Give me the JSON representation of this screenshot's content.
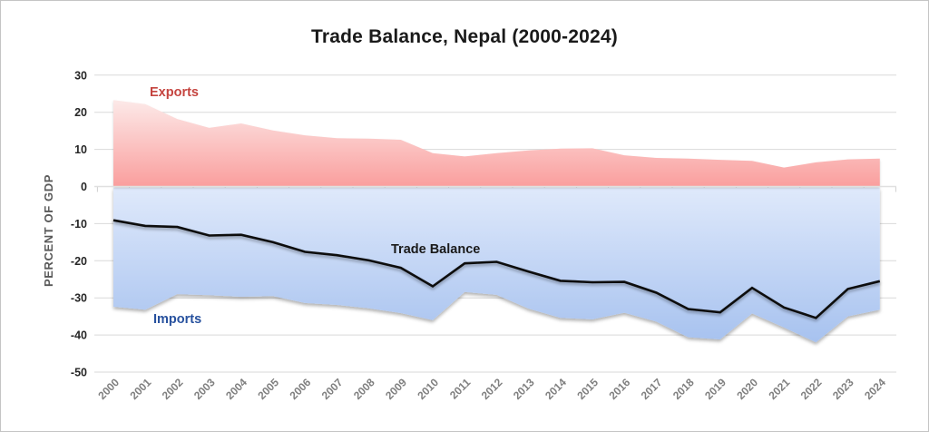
{
  "chart_data": {
    "type": "area",
    "title": "Trade Balance, Nepal (2000-2024)",
    "ylabel": "PERCENT OF GDP",
    "xlabel": "",
    "ylim": [
      -50,
      30
    ],
    "y_ticks": [
      30,
      20,
      10,
      0,
      -10,
      -20,
      -30,
      -40,
      -50
    ],
    "grid": true,
    "legend_position": "inline-labels",
    "categories": [
      2000,
      2001,
      2002,
      2003,
      2004,
      2005,
      2006,
      2007,
      2008,
      2009,
      2010,
      2011,
      2012,
      2013,
      2014,
      2015,
      2016,
      2017,
      2018,
      2019,
      2020,
      2021,
      2022,
      2023,
      2024
    ],
    "series": [
      {
        "name": "Exports",
        "render": "area",
        "values": [
          23.3,
          22.2,
          18.2,
          15.8,
          17.0,
          15.1,
          13.8,
          13.0,
          12.9,
          12.6,
          9.0,
          8.1,
          9.0,
          9.7,
          10.2,
          10.3,
          8.4,
          7.7,
          7.5,
          7.2,
          6.9,
          5.1,
          6.5,
          7.3,
          7.5
        ],
        "fill_top": "#fce9e8",
        "fill_bottom": "#fa9e9d",
        "label_color": "#c5443f"
      },
      {
        "name": "Imports",
        "render": "area",
        "values": [
          -32.4,
          -33.2,
          -29.0,
          -29.3,
          -29.7,
          -29.5,
          -31.4,
          -31.9,
          -32.8,
          -34.1,
          -36.0,
          -28.4,
          -29.2,
          -32.9,
          -35.4,
          -35.8,
          -34.0,
          -36.4,
          -40.6,
          -41.2,
          -34.2,
          -38.0,
          -42.0,
          -35.0,
          -33.2
        ],
        "fill_top": "#dfe9fb",
        "fill_bottom": "#a7c2ef",
        "label_color": "#27519e"
      },
      {
        "name": "Trade Balance",
        "render": "line",
        "values": [
          -9.1,
          -10.6,
          -10.9,
          -13.2,
          -13.0,
          -15.0,
          -17.6,
          -18.5,
          -19.9,
          -21.9,
          -26.9,
          -20.7,
          -20.3,
          -22.9,
          -25.4,
          -25.8,
          -25.7,
          -28.6,
          -33.0,
          -33.9,
          -27.3,
          -32.6,
          -35.4,
          -27.6,
          -25.5
        ],
        "line_color": "#0d0d0d",
        "label_color": "#1a1a1a"
      }
    ]
  },
  "labels": {
    "exports": "Exports",
    "imports": "Imports",
    "balance": "Trade Balance"
  },
  "axis_style": {
    "grid_color": "#d9d9d9",
    "zero_line_color": "#e0e0e0",
    "tick_color": "#cfcfcf",
    "x_label_color": "#7f7f7f",
    "y_label_color": "#262626"
  }
}
